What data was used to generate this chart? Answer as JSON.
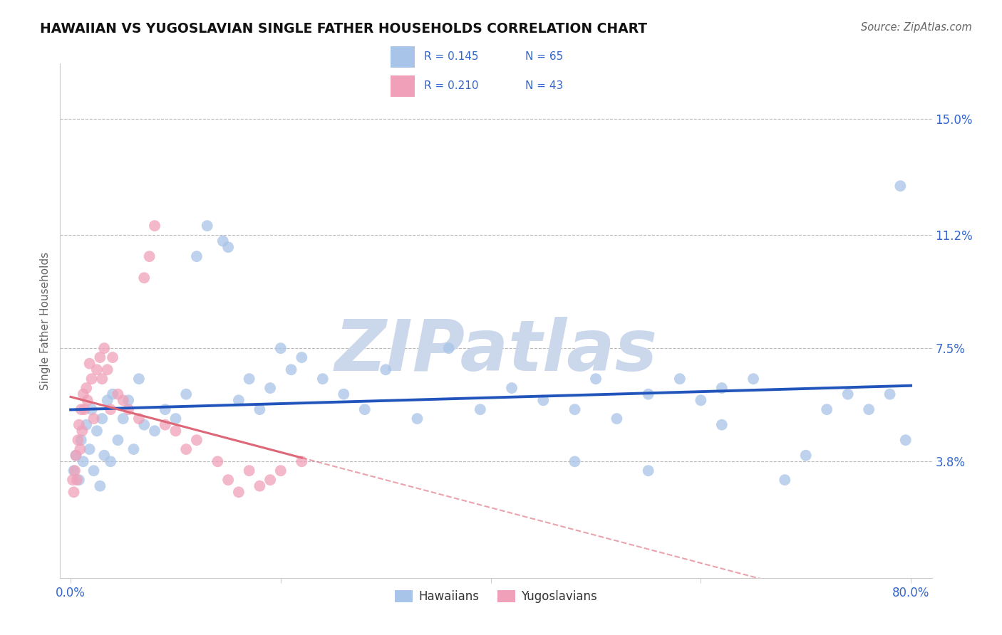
{
  "title": "HAWAIIAN VS YUGOSLAVIAN SINGLE FATHER HOUSEHOLDS CORRELATION CHART",
  "source": "Source: ZipAtlas.com",
  "ylabel": "Single Father Households",
  "x_tick_vals": [
    0.0,
    80.0
  ],
  "y_tick_vals": [
    3.8,
    7.5,
    11.2,
    15.0
  ],
  "y_ticks_right": [
    "3.8%",
    "7.5%",
    "11.2%",
    "15.0%"
  ],
  "xlim": [
    -1,
    82
  ],
  "ylim": [
    0,
    16.8
  ],
  "hawaiians_R": 0.145,
  "hawaiians_N": 65,
  "yugoslavians_R": 0.21,
  "yugoslavians_N": 43,
  "hawaiian_color": "#A8C4E8",
  "yugoslavian_color": "#F0A0B8",
  "hawaiian_line_color": "#2255BB",
  "yugoslavian_line_color": "#DD6677",
  "hawaiian_scatter_x": [
    0.3,
    0.5,
    0.8,
    1.0,
    1.2,
    1.5,
    1.8,
    2.0,
    2.2,
    2.5,
    2.8,
    3.0,
    3.2,
    3.5,
    3.8,
    4.0,
    4.5,
    5.0,
    5.5,
    6.0,
    6.5,
    7.0,
    8.0,
    9.0,
    10.0,
    11.0,
    12.0,
    13.0,
    14.5,
    15.0,
    16.0,
    17.0,
    18.0,
    19.0,
    20.0,
    21.0,
    22.0,
    24.0,
    26.0,
    28.0,
    30.0,
    33.0,
    36.0,
    39.0,
    42.0,
    45.0,
    48.0,
    50.0,
    52.0,
    55.0,
    58.0,
    60.0,
    62.0,
    65.0,
    68.0,
    70.0,
    72.0,
    74.0,
    76.0,
    78.0,
    79.0,
    79.5,
    62.0,
    55.0,
    48.0
  ],
  "hawaiian_scatter_y": [
    3.5,
    4.0,
    3.2,
    4.5,
    3.8,
    5.0,
    4.2,
    5.5,
    3.5,
    4.8,
    3.0,
    5.2,
    4.0,
    5.8,
    3.8,
    6.0,
    4.5,
    5.2,
    5.8,
    4.2,
    6.5,
    5.0,
    4.8,
    5.5,
    5.2,
    6.0,
    10.5,
    11.5,
    11.0,
    10.8,
    5.8,
    6.5,
    5.5,
    6.2,
    7.5,
    6.8,
    7.2,
    6.5,
    6.0,
    5.5,
    6.8,
    5.2,
    7.5,
    5.5,
    6.2,
    5.8,
    5.5,
    6.5,
    5.2,
    6.0,
    6.5,
    5.8,
    6.2,
    6.5,
    3.2,
    4.0,
    5.5,
    6.0,
    5.5,
    6.0,
    12.8,
    4.5,
    5.0,
    3.5,
    3.8
  ],
  "yugoslavian_scatter_x": [
    0.2,
    0.3,
    0.4,
    0.5,
    0.6,
    0.7,
    0.8,
    0.9,
    1.0,
    1.1,
    1.2,
    1.3,
    1.5,
    1.6,
    1.8,
    2.0,
    2.2,
    2.5,
    2.8,
    3.0,
    3.2,
    3.5,
    3.8,
    4.0,
    4.5,
    5.0,
    5.5,
    6.5,
    7.0,
    7.5,
    8.0,
    9.0,
    10.0,
    11.0,
    12.0,
    14.0,
    15.0,
    16.0,
    17.0,
    18.0,
    19.0,
    20.0,
    22.0
  ],
  "yugoslavian_scatter_y": [
    3.2,
    2.8,
    3.5,
    4.0,
    3.2,
    4.5,
    5.0,
    4.2,
    5.5,
    4.8,
    6.0,
    5.5,
    6.2,
    5.8,
    7.0,
    6.5,
    5.2,
    6.8,
    7.2,
    6.5,
    7.5,
    6.8,
    5.5,
    7.2,
    6.0,
    5.8,
    5.5,
    5.2,
    9.8,
    10.5,
    11.5,
    5.0,
    4.8,
    4.2,
    4.5,
    3.8,
    3.2,
    2.8,
    3.5,
    3.0,
    3.2,
    3.5,
    3.8
  ],
  "background_color": "#FFFFFF",
  "grid_color": "#BBBBBB",
  "watermark": "ZIPatlas",
  "watermark_color": "#CBD8EC"
}
